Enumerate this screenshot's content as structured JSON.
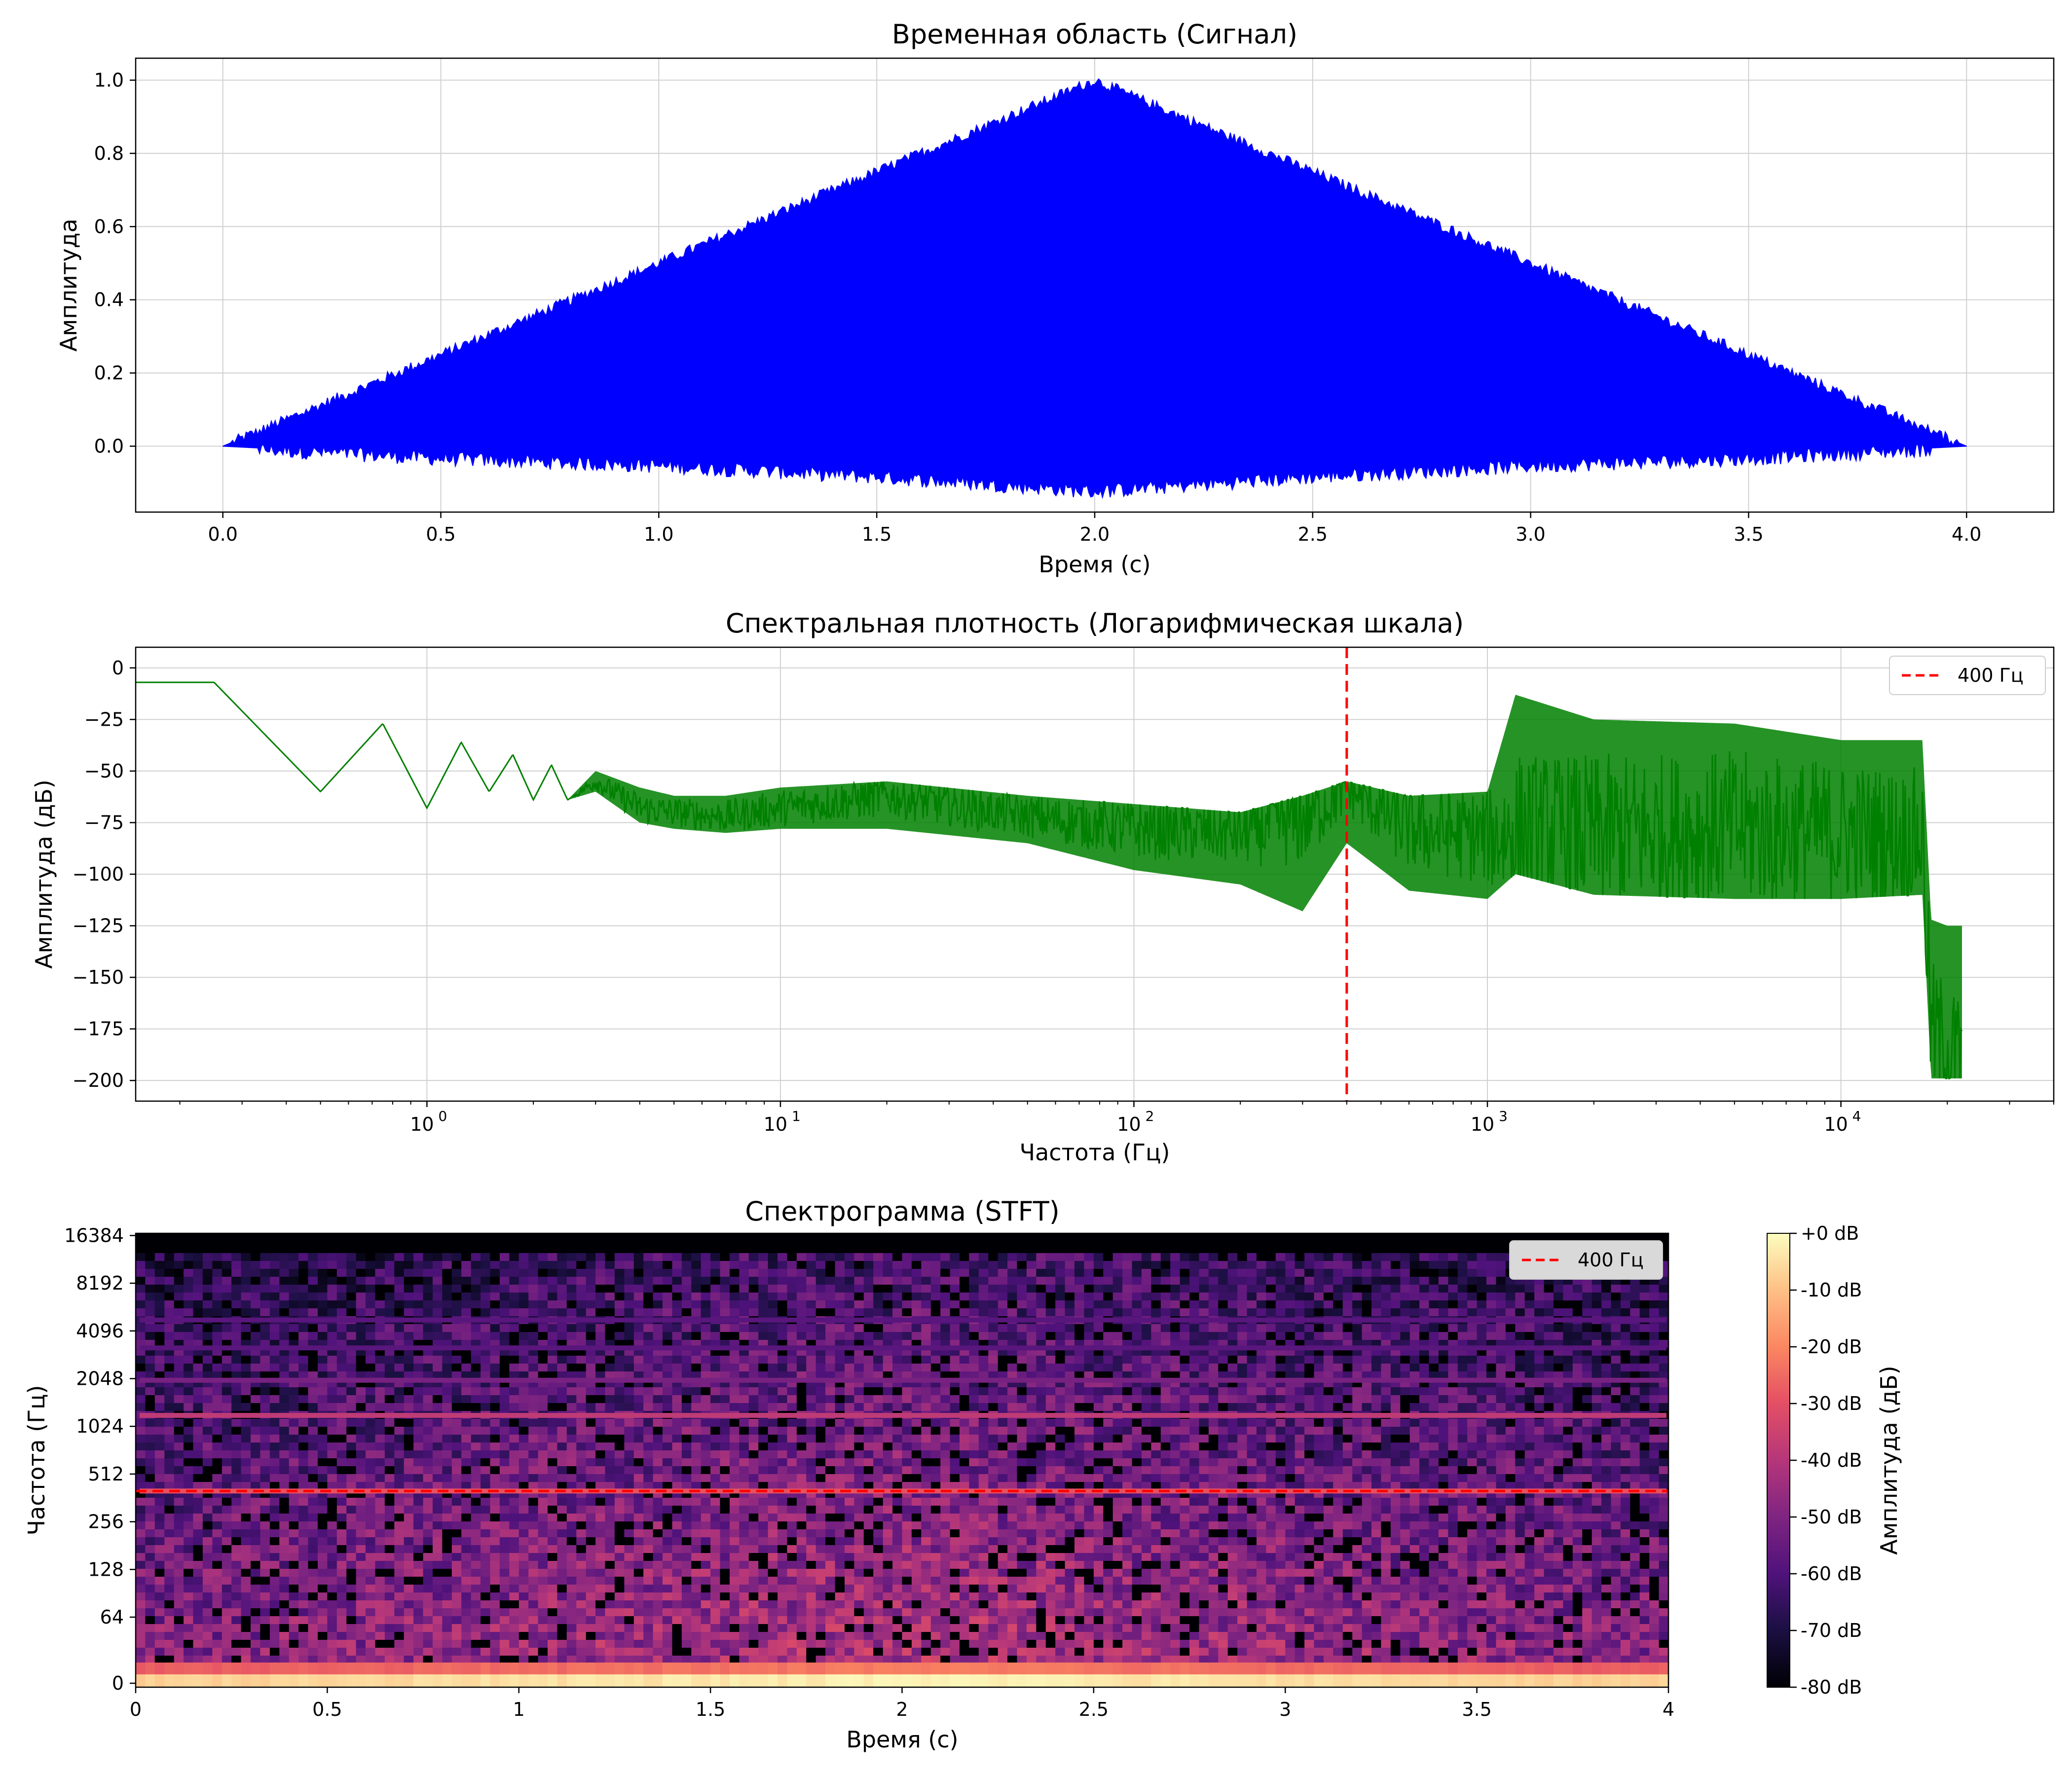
{
  "chart_data": [
    {
      "type": "area",
      "title": "Временная область (Сигнал)",
      "xlabel": "Время (с)",
      "ylabel": "Амплитуда",
      "xlim": [
        -0.2,
        4.2
      ],
      "ylim": [
        -0.18,
        1.06
      ],
      "x_ticks": [
        "0.0",
        "0.5",
        "1.0",
        "1.5",
        "2.0",
        "2.5",
        "3.0",
        "3.5",
        "4.0"
      ],
      "y_ticks": [
        "0.0",
        "0.2",
        "0.4",
        "0.6",
        "0.8",
        "1.0"
      ],
      "grid": true,
      "color": "#0000ff",
      "series": [
        {
          "x": [
            0.0,
            0.5,
            1.0,
            1.5,
            2.0,
            2.5,
            3.0,
            3.5,
            4.0
          ],
          "upper": [
            0.0,
            0.25,
            0.5,
            0.75,
            1.0,
            0.75,
            0.5,
            0.25,
            0.0
          ],
          "lower": [
            0.0,
            -0.03,
            -0.05,
            -0.08,
            -0.12,
            -0.08,
            -0.05,
            -0.03,
            0.0
          ]
        }
      ]
    },
    {
      "type": "line",
      "title": "Спектральная плотность (Логарифмическая шкала)",
      "xlabel": "Частота (Гц)",
      "ylabel": "Амплитуда (дБ)",
      "xscale": "log",
      "xlim": [
        0.15,
        40000
      ],
      "ylim": [
        -210,
        10
      ],
      "x_ticks": [
        "10^0",
        "10^1",
        "10^2",
        "10^3",
        "10^4"
      ],
      "y_ticks": [
        "0",
        "−25",
        "−50",
        "−75",
        "−100",
        "−125",
        "−150",
        "−175",
        "−200"
      ],
      "grid": true,
      "color": "#008000",
      "legend": {
        "position": "top-right",
        "entries": [
          "400 Гц"
        ]
      },
      "vline": {
        "x": 400,
        "color": "#ff0000",
        "label": "400 Гц"
      },
      "series": [
        {
          "x": [
            0.15,
            0.25,
            0.5,
            0.75,
            1.0,
            1.25,
            1.5,
            1.75,
            2.0,
            2.25,
            2.5,
            3,
            4,
            5,
            7,
            10,
            20,
            50,
            100,
            200,
            300,
            400,
            600,
            1000,
            1200,
            2000,
            5000,
            10000,
            17000,
            18000,
            20000,
            22000
          ],
          "y": [
            -7,
            -7,
            -60,
            -27,
            -68,
            -36,
            -60,
            -42,
            -64,
            -47,
            -64,
            -55,
            -68,
            -70,
            -72,
            -68,
            -62,
            -72,
            -78,
            -80,
            -72,
            -58,
            -78,
            -82,
            -80,
            -80,
            -78,
            -80,
            -82,
            -175,
            -185,
            -190
          ],
          "upper": [
            -7,
            -7,
            -60,
            -27,
            -68,
            -36,
            -60,
            -42,
            -64,
            -47,
            -64,
            -50,
            -58,
            -62,
            -62,
            -58,
            -55,
            -62,
            -66,
            -70,
            -62,
            -55,
            -62,
            -60,
            -13,
            -25,
            -27,
            -35,
            -35,
            -122,
            -125,
            -125
          ],
          "lower": [
            -7,
            -7,
            -60,
            -27,
            -68,
            -36,
            -60,
            -42,
            -64,
            -47,
            -64,
            -60,
            -75,
            -78,
            -80,
            -78,
            -78,
            -85,
            -98,
            -105,
            -118,
            -85,
            -108,
            -112,
            -100,
            -110,
            -112,
            -112,
            -110,
            -199,
            -199,
            -199
          ]
        }
      ]
    },
    {
      "type": "heatmap",
      "title": "Спектрограмма (STFT)",
      "xlabel": "Время (с)",
      "ylabel": "Частота (Гц)",
      "yscale": "symlog",
      "xlim": [
        0,
        4
      ],
      "x_ticks": [
        "0",
        "0.5",
        "1",
        "1.5",
        "2",
        "2.5",
        "3",
        "3.5",
        "4"
      ],
      "y_ticks": [
        "0",
        "64",
        "128",
        "256",
        "512",
        "1024",
        "2048",
        "4096",
        "8192",
        "16384"
      ],
      "colormap": "magma",
      "colorbar": {
        "label": "Амплитуда (дБ)",
        "range": [
          -80,
          0
        ],
        "ticks": [
          "+0 dB",
          "-10 dB",
          "-20 dB",
          "-30 dB",
          "-40 dB",
          "-50 dB",
          "-60 dB",
          "-70 dB",
          "-80 dB"
        ]
      },
      "legend": {
        "position": "top-right",
        "entries": [
          "400 Гц"
        ]
      },
      "hline": {
        "y": 400,
        "color": "#ff0000",
        "label": "400 Гц"
      },
      "bands_hz": [
        {
          "freq": 10,
          "db": -4,
          "note": "strong low-frequency band"
        },
        {
          "freq": 400,
          "db": -30
        },
        {
          "freq": 1200,
          "db": -38
        },
        {
          "freq": 2000,
          "db": -52
        },
        {
          "freq": 3200,
          "db": -58
        },
        {
          "freq": 4800,
          "db": -58
        }
      ]
    }
  ]
}
